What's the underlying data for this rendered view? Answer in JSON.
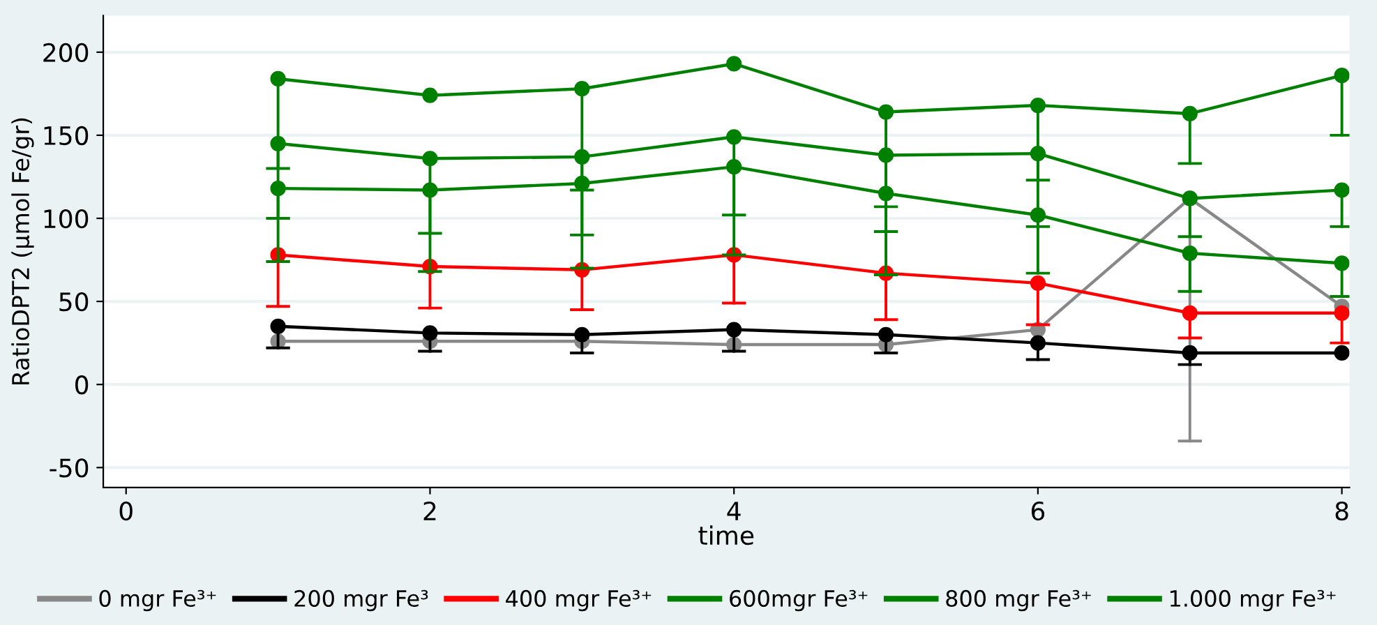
{
  "chart_data": {
    "type": "line",
    "xlabel": "time",
    "ylabel": "RatioDPT2 (µmol Fe/gr)",
    "x": [
      1,
      2,
      3,
      4,
      5,
      6,
      7,
      8
    ],
    "xlim": [
      -0.15,
      8.05
    ],
    "xticks": [
      0,
      2,
      4,
      6,
      8
    ],
    "ylim": [
      -62,
      222
    ],
    "yticks": [
      -50,
      0,
      50,
      100,
      150,
      200
    ],
    "grid": "y",
    "legend": "bottom",
    "marker": "circle",
    "line_style": "solid",
    "series": [
      {
        "name": "0 mgr Fe³⁺",
        "color": "#888888",
        "values": [
          26,
          26,
          26,
          24,
          24,
          33,
          112,
          47
        ],
        "errors": [
          null,
          null,
          null,
          null,
          null,
          null,
          [
            -34,
            112
          ],
          null
        ]
      },
      {
        "name": "200 mgr Fe³",
        "color": "#000000",
        "values": [
          35,
          31,
          30,
          33,
          30,
          25,
          19,
          19
        ],
        "errors": [
          [
            22,
            35
          ],
          [
            20,
            31
          ],
          [
            19,
            30
          ],
          [
            20,
            33
          ],
          [
            19,
            30
          ],
          [
            15,
            25
          ],
          [
            12,
            19
          ],
          null
        ]
      },
      {
        "name": "400 mgr Fe³⁺",
        "color": "#ff0000",
        "values": [
          78,
          71,
          69,
          78,
          67,
          61,
          43,
          43
        ],
        "errors": [
          [
            47,
            78
          ],
          [
            46,
            71
          ],
          [
            45,
            69
          ],
          [
            49,
            78
          ],
          [
            39,
            67
          ],
          [
            36,
            61
          ],
          [
            28,
            43
          ],
          [
            25,
            43
          ]
        ]
      },
      {
        "name": "600mgr Fe³⁺",
        "color": "#008000",
        "values": [
          118,
          117,
          121,
          131,
          115,
          102,
          79,
          73
        ],
        "errors": [
          [
            74,
            118
          ],
          [
            68,
            117
          ],
          [
            70,
            121
          ],
          [
            78,
            131
          ],
          [
            66,
            115
          ],
          [
            67,
            102
          ],
          [
            56,
            79
          ],
          [
            53,
            73
          ]
        ]
      },
      {
        "name": "800 mgr Fe³⁺",
        "color": "#008000",
        "values": [
          145,
          136,
          137,
          149,
          138,
          139,
          112,
          117
        ],
        "errors": [
          [
            100,
            145
          ],
          [
            91,
            136
          ],
          [
            90,
            137
          ],
          [
            102,
            149
          ],
          [
            92,
            138
          ],
          [
            95,
            139
          ],
          [
            89,
            112
          ],
          [
            95,
            117
          ]
        ]
      },
      {
        "name": "1.000 mgr Fe³⁺",
        "color": "#008000",
        "values": [
          184,
          174,
          178,
          193,
          164,
          168,
          163,
          186
        ],
        "errors": [
          [
            130,
            184
          ],
          null,
          [
            117,
            178
          ],
          null,
          [
            107,
            164
          ],
          [
            123,
            168
          ],
          [
            133,
            163
          ],
          [
            150,
            186
          ]
        ]
      }
    ]
  }
}
